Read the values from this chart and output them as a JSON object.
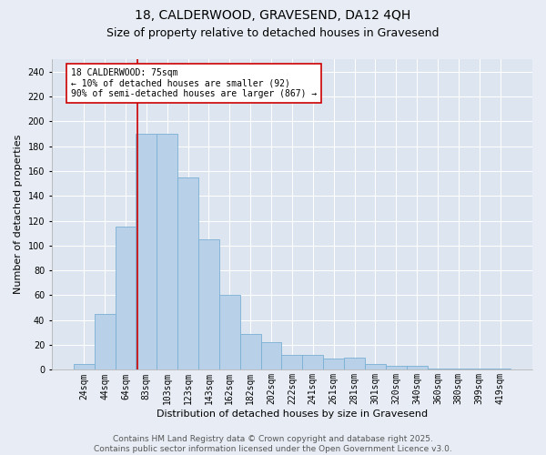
{
  "title_line1": "18, CALDERWOOD, GRAVESEND, DA12 4QH",
  "title_line2": "Size of property relative to detached houses in Gravesend",
  "xlabel": "Distribution of detached houses by size in Gravesend",
  "ylabel": "Number of detached properties",
  "categories": [
    "24sqm",
    "44sqm",
    "64sqm",
    "83sqm",
    "103sqm",
    "123sqm",
    "143sqm",
    "162sqm",
    "182sqm",
    "202sqm",
    "222sqm",
    "241sqm",
    "261sqm",
    "281sqm",
    "301sqm",
    "320sqm",
    "340sqm",
    "360sqm",
    "380sqm",
    "399sqm",
    "419sqm"
  ],
  "values": [
    5,
    45,
    115,
    190,
    190,
    155,
    105,
    60,
    29,
    22,
    12,
    12,
    9,
    10,
    5,
    3,
    3,
    1,
    1,
    1,
    1
  ],
  "bar_color": "#b8d0e8",
  "bar_edge_color": "#7aafd4",
  "vline_x": 2.55,
  "vline_color": "#cc0000",
  "annotation_text": "18 CALDERWOOD: 75sqm\n← 10% of detached houses are smaller (92)\n90% of semi-detached houses are larger (867) →",
  "annotation_box_color": "#ffffff",
  "annotation_edge_color": "#cc0000",
  "annotation_fontsize": 7,
  "background_color": "#e8edf5",
  "plot_background_color": "#dce5f0",
  "grid_color": "#ffffff",
  "ylim": [
    0,
    250
  ],
  "yticks": [
    0,
    20,
    40,
    60,
    80,
    100,
    120,
    140,
    160,
    180,
    200,
    220,
    240
  ],
  "footer_text": "Contains HM Land Registry data © Crown copyright and database right 2025.\nContains public sector information licensed under the Open Government Licence v3.0.",
  "title_fontsize": 10,
  "subtitle_fontsize": 9,
  "xlabel_fontsize": 8,
  "ylabel_fontsize": 8,
  "tick_fontsize": 7,
  "footer_fontsize": 6.5
}
